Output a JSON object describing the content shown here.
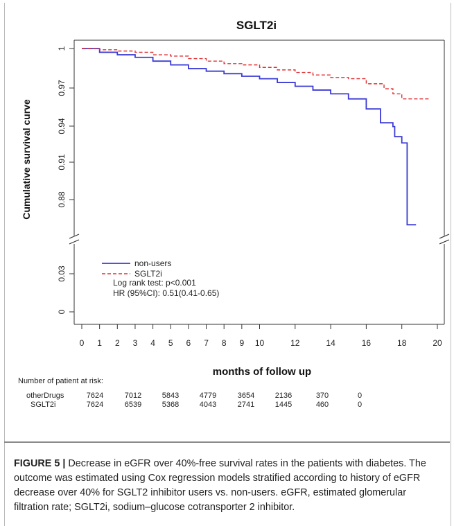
{
  "chart_data": {
    "type": "line",
    "title": "SGLT2i",
    "xlabel": "months of follow up",
    "ylabel": "Cumulative survival curve",
    "xlim": [
      0,
      20
    ],
    "x_ticks": [
      "0",
      "1",
      "2",
      "3",
      "4",
      "5",
      "6",
      "7",
      "8",
      "9",
      "10",
      "12",
      "14",
      "16",
      "18",
      "20"
    ],
    "y_ticks_upper": [
      "1",
      "0.97",
      "0.94",
      "0.91",
      "0.88"
    ],
    "y_ticks_lower": [
      "0.03",
      "0"
    ],
    "broken_y_axis": true,
    "legend_position": "lower-left",
    "series": [
      {
        "name": "non-users",
        "color": "#3a3ad6",
        "line_style": "solid",
        "x": [
          0,
          1,
          2,
          3,
          4,
          5,
          6,
          7,
          8,
          9,
          10,
          11,
          12,
          13,
          14,
          15,
          16,
          16.8,
          17.3,
          17.5,
          17.6,
          18,
          18.1,
          18.2,
          18.3,
          18.6,
          18.8
        ],
        "y": [
          1.0,
          0.997,
          0.995,
          0.993,
          0.99,
          0.987,
          0.984,
          0.982,
          0.98,
          0.978,
          0.976,
          0.973,
          0.97,
          0.967,
          0.964,
          0.96,
          0.952,
          0.941,
          0.941,
          0.938,
          0.93,
          0.925,
          0.925,
          0.925,
          0.86,
          0.86,
          0.86
        ]
      },
      {
        "name": "SGLT2i",
        "color": "#e03030",
        "line_style": "dashed",
        "x": [
          0,
          1,
          2,
          3,
          4,
          5,
          6,
          7,
          8,
          9,
          10,
          11,
          12,
          13,
          14,
          15,
          16,
          17,
          17.5,
          18,
          19,
          19.6
        ],
        "y": [
          1.0,
          0.999,
          0.998,
          0.997,
          0.995,
          0.994,
          0.992,
          0.99,
          0.988,
          0.987,
          0.985,
          0.983,
          0.981,
          0.979,
          0.977,
          0.976,
          0.972,
          0.968,
          0.964,
          0.96,
          0.96,
          0.96
        ]
      }
    ],
    "annotations": [
      "Log rank test: p<0.001",
      "HR (95%CI): 0.51(0.41-0.65)"
    ],
    "risk_table": {
      "title": "Number of patient at risk:",
      "rows": [
        {
          "label": "otherDrugs",
          "values": [
            "7624",
            "7012",
            "5843",
            "4779",
            "3654",
            "2136",
            "370",
            "0"
          ]
        },
        {
          "label": "SGLT2i",
          "values": [
            "7624",
            "6539",
            "5368",
            "4043",
            "2741",
            "1445",
            "460",
            "0"
          ]
        }
      ]
    }
  },
  "caption": {
    "label": "FIGURE 5 |",
    "text": " Decrease in eGFR over 40%-free survival rates in the patients with diabetes. The outcome was estimated using Cox regression models stratified according to history of eGFR decrease over 40% for SGLT2 inhibitor users vs. non-users. eGFR, estimated glomerular filtration rate; SGLT2i, sodium–glucose cotransporter 2 inhibitor."
  }
}
